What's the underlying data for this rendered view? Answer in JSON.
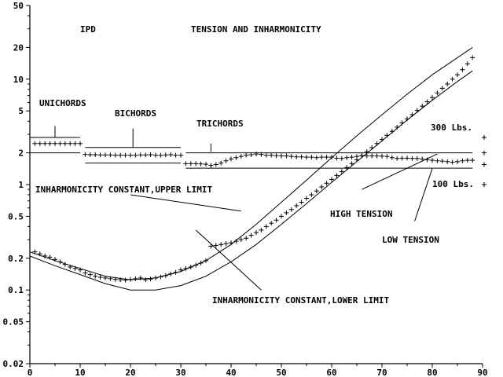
{
  "chart_data": {
    "type": "line",
    "title": "TENSION AND INHARMONICITY",
    "header_left": "IPD",
    "xlabel": "",
    "ylabel": "",
    "xlim": [
      0,
      90
    ],
    "ylim": [
      0.02,
      50
    ],
    "y_scale": "log",
    "grid": false,
    "x_ticks": [
      0,
      10,
      20,
      30,
      40,
      50,
      60,
      70,
      80,
      90
    ],
    "x_tick_labels": [
      "0",
      "10",
      "20",
      "30",
      "40",
      "50",
      "60",
      "70",
      "80",
      "90"
    ],
    "y_ticks": [
      0.02,
      0.05,
      0.1,
      0.2,
      0.5,
      1,
      2,
      5,
      10,
      20,
      50
    ],
    "y_tick_labels": [
      "0.02",
      "0.05",
      "0.1",
      "0.2",
      "0.5",
      "1",
      "2",
      "5",
      "10",
      "20",
      "50"
    ],
    "series": [
      {
        "name": "INHARMONICITY CONSTANT,UPPER LIMIT",
        "style": "line",
        "x": [
          0,
          5,
          10,
          15,
          20,
          25,
          30,
          35,
          40,
          45,
          50,
          55,
          60,
          65,
          70,
          75,
          80,
          85,
          88
        ],
        "y": [
          0.23,
          0.19,
          0.16,
          0.135,
          0.125,
          0.13,
          0.15,
          0.19,
          0.27,
          0.42,
          0.68,
          1.1,
          1.8,
          2.9,
          4.6,
          7.2,
          11,
          16,
          20
        ]
      },
      {
        "name": "INHARMONICITY CONSTANT,LOWER LIMIT",
        "style": "line",
        "x": [
          0,
          5,
          10,
          15,
          20,
          25,
          30,
          35,
          40,
          45,
          50,
          55,
          60,
          65,
          70,
          75,
          80,
          85,
          88
        ],
        "y": [
          0.21,
          0.17,
          0.14,
          0.115,
          0.1,
          0.1,
          0.11,
          0.135,
          0.185,
          0.27,
          0.42,
          0.66,
          1.05,
          1.65,
          2.6,
          4.1,
          6.3,
          9.5,
          12
        ]
      },
      {
        "name": "inharmonicity",
        "style": "marker",
        "x": [
          1,
          2,
          3,
          4,
          5,
          6,
          7,
          8,
          9,
          10,
          11,
          12,
          13,
          14,
          15,
          16,
          17,
          18,
          19,
          20,
          21,
          22,
          23,
          24,
          25,
          26,
          27,
          28,
          29,
          30,
          31,
          32,
          33,
          34,
          35,
          36,
          37,
          38,
          39,
          40,
          41,
          42,
          43,
          44,
          45,
          46,
          47,
          48,
          49,
          50,
          51,
          52,
          53,
          54,
          55,
          56,
          57,
          58,
          59,
          60,
          61,
          62,
          63,
          64,
          65,
          66,
          67,
          68,
          69,
          70,
          71,
          72,
          73,
          74,
          75,
          76,
          77,
          78,
          79,
          80,
          81,
          82,
          83,
          84,
          85,
          86,
          87,
          88
        ],
        "y": [
          0.23,
          0.22,
          0.21,
          0.205,
          0.195,
          0.185,
          0.175,
          0.165,
          0.16,
          0.155,
          0.145,
          0.14,
          0.135,
          0.132,
          0.13,
          0.128,
          0.126,
          0.125,
          0.124,
          0.126,
          0.128,
          0.13,
          0.125,
          0.127,
          0.13,
          0.133,
          0.137,
          0.142,
          0.147,
          0.155,
          0.16,
          0.165,
          0.172,
          0.18,
          0.19,
          0.26,
          0.265,
          0.27,
          0.275,
          0.28,
          0.29,
          0.3,
          0.31,
          0.33,
          0.35,
          0.37,
          0.4,
          0.43,
          0.46,
          0.5,
          0.54,
          0.58,
          0.63,
          0.68,
          0.74,
          0.8,
          0.87,
          0.95,
          1.03,
          1.12,
          1.22,
          1.33,
          1.45,
          1.58,
          1.72,
          1.88,
          2.05,
          2.24,
          2.45,
          2.68,
          2.93,
          3.2,
          3.5,
          3.85,
          4.2,
          4.6,
          5.05,
          5.55,
          6.1,
          6.7,
          7.4,
          8.2,
          9.0,
          10.0,
          11.0,
          12.3,
          14.0,
          16.0
        ]
      },
      {
        "name": "tension",
        "style": "marker",
        "x": [
          1,
          2,
          3,
          4,
          5,
          6,
          7,
          8,
          9,
          10,
          11,
          12,
          13,
          14,
          15,
          16,
          17,
          18,
          19,
          20,
          21,
          22,
          23,
          24,
          25,
          26,
          27,
          28,
          29,
          30,
          31,
          32,
          33,
          34,
          35,
          36,
          37,
          38,
          39,
          40,
          41,
          42,
          43,
          44,
          45,
          46,
          47,
          48,
          49,
          50,
          51,
          52,
          53,
          54,
          55,
          56,
          57,
          58,
          59,
          60,
          61,
          62,
          63,
          64,
          65,
          66,
          67,
          68,
          69,
          70,
          71,
          72,
          73,
          74,
          75,
          76,
          77,
          78,
          79,
          80,
          81,
          82,
          83,
          84,
          85,
          86,
          87,
          88
        ],
        "y": [
          2.45,
          2.45,
          2.45,
          2.45,
          2.45,
          2.45,
          2.45,
          2.45,
          2.45,
          2.45,
          1.93,
          1.92,
          1.92,
          1.91,
          1.91,
          1.91,
          1.9,
          1.9,
          1.9,
          1.9,
          1.9,
          1.91,
          1.91,
          1.92,
          1.9,
          1.9,
          1.91,
          1.92,
          1.9,
          1.9,
          1.58,
          1.58,
          1.58,
          1.57,
          1.56,
          1.52,
          1.55,
          1.6,
          1.68,
          1.75,
          1.8,
          1.85,
          1.9,
          1.92,
          1.95,
          1.93,
          1.9,
          1.9,
          1.88,
          1.87,
          1.87,
          1.85,
          1.83,
          1.83,
          1.82,
          1.82,
          1.8,
          1.82,
          1.82,
          1.82,
          1.78,
          1.77,
          1.8,
          1.82,
          1.85,
          1.88,
          1.87,
          1.87,
          1.87,
          1.86,
          1.85,
          1.8,
          1.77,
          1.78,
          1.78,
          1.77,
          1.77,
          1.75,
          1.72,
          1.7,
          1.68,
          1.67,
          1.65,
          1.63,
          1.65,
          1.68,
          1.7,
          1.7
        ]
      }
    ],
    "reference_lines": [
      {
        "x": [
          0,
          10
        ],
        "y": [
          2.8,
          2.8
        ]
      },
      {
        "x": [
          0,
          10
        ],
        "y": [
          2.0,
          2.0
        ]
      },
      {
        "x": [
          11,
          30
        ],
        "y": [
          2.25,
          2.25
        ]
      },
      {
        "x": [
          11,
          30
        ],
        "y": [
          1.6,
          1.6
        ]
      },
      {
        "x": [
          31,
          88
        ],
        "y": [
          2.0,
          2.0
        ]
      },
      {
        "x": [
          31,
          88
        ],
        "y": [
          1.43,
          1.43
        ]
      }
    ],
    "right_scale": {
      "ticks": [
        2.8,
        2.0,
        1.55,
        1.0
      ],
      "labels": [
        {
          "text": "300 Lbs.",
          "y": 2.8
        },
        {
          "text": "100 Lbs.",
          "y": 1.0
        }
      ]
    },
    "annotations": [
      {
        "id": "unichords",
        "text": "UNICHORDS",
        "leader_x": [
          5,
          5
        ],
        "leader_y": [
          3.6,
          2.8
        ]
      },
      {
        "id": "bichords",
        "text": "BICHORDS",
        "leader_x": [
          20.5,
          20.5
        ],
        "leader_y": [
          3.4,
          2.25
        ]
      },
      {
        "id": "trichords",
        "text": "TRICHORDS",
        "leader_x": [
          36,
          36
        ],
        "leader_y": [
          2.45,
          2.05
        ]
      },
      {
        "id": "upper",
        "text": "INHARMONICITY CONSTANT,UPPER LIMIT",
        "leader_x": [
          20,
          42
        ],
        "leader_y": [
          0.8,
          0.56
        ]
      },
      {
        "id": "lower",
        "text": "INHARMONICITY CONSTANT,LOWER LIMIT",
        "leader_x": [
          46,
          33
        ],
        "leader_y": [
          0.1,
          0.37
        ]
      },
      {
        "id": "high",
        "text": "HIGH TENSION",
        "leader_x": [
          66,
          81
        ],
        "leader_y": [
          0.9,
          1.95
        ]
      },
      {
        "id": "low",
        "text": "LOW TENSION",
        "leader_x": [
          76.5,
          80
        ],
        "leader_y": [
          0.45,
          1.42
        ]
      }
    ]
  }
}
